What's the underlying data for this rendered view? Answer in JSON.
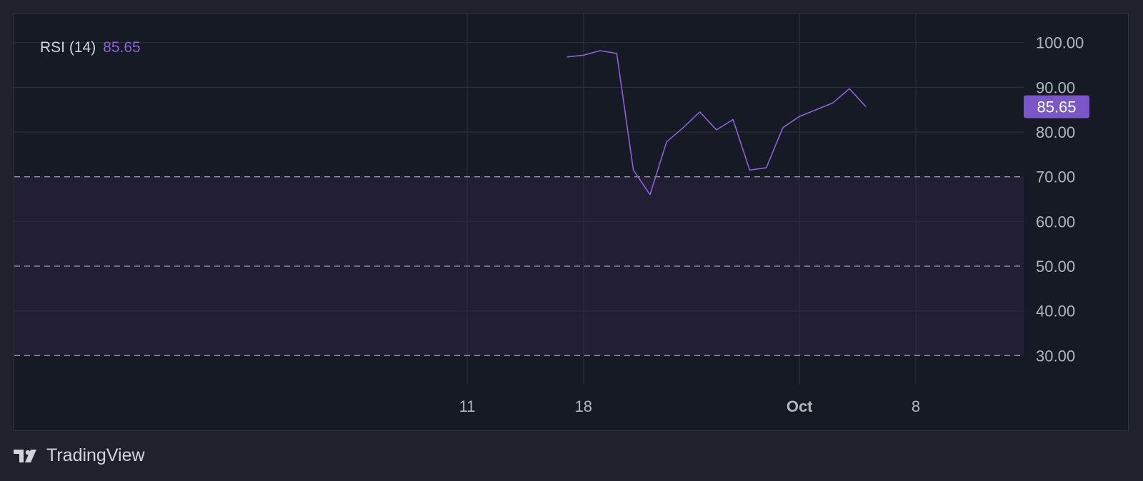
{
  "legend": {
    "label": "RSI (14)",
    "value": "85.65"
  },
  "brand": {
    "name": "TradingView"
  },
  "colors": {
    "background": "#161a25",
    "page": "#1f222d",
    "grid": "#2a2e39",
    "band_fill": "#221f35",
    "line": "#8b61d6",
    "price_label_bg": "#7b56c6",
    "axis_text": "#b2b5be",
    "dashed": "#9598a1"
  },
  "chart_data": {
    "type": "line",
    "title": "RSI (14)",
    "series": [
      {
        "name": "RSI (14)",
        "x": [
          "Sep 17",
          "Sep 18",
          "Sep 19",
          "Sep 20",
          "Sep 21",
          "Sep 22",
          "Sep 23",
          "Sep 24",
          "Sep 25",
          "Sep 26",
          "Sep 27",
          "Sep 28",
          "Sep 29",
          "Sep 30",
          "Oct 1",
          "Oct 2",
          "Oct 3",
          "Oct 4",
          "Oct 5"
        ],
        "values": [
          96.8,
          97.2,
          98.2,
          97.6,
          71.5,
          66.0,
          77.8,
          81.0,
          84.5,
          80.5,
          82.8,
          71.5,
          72.0,
          81.0,
          83.5,
          85.0,
          86.5,
          89.7,
          85.65
        ]
      }
    ],
    "x_ticks": [
      {
        "x": "Sep 11",
        "label": "11",
        "bold": false
      },
      {
        "x": "Sep 18",
        "label": "18",
        "bold": false
      },
      {
        "x": "Oct 1",
        "label": "Oct",
        "bold": true
      },
      {
        "x": "Oct 8",
        "label": "8",
        "bold": false
      }
    ],
    "y_ticks": [
      "30.00",
      "40.00",
      "50.00",
      "60.00",
      "70.00",
      "80.00",
      "90.00",
      "100.00"
    ],
    "ylim": [
      23.5,
      106.5
    ],
    "reference_lines": [
      70,
      50,
      30
    ],
    "band": [
      30,
      70
    ],
    "last_value_label": "85.65",
    "grid": true,
    "y_axis_side": "right"
  }
}
